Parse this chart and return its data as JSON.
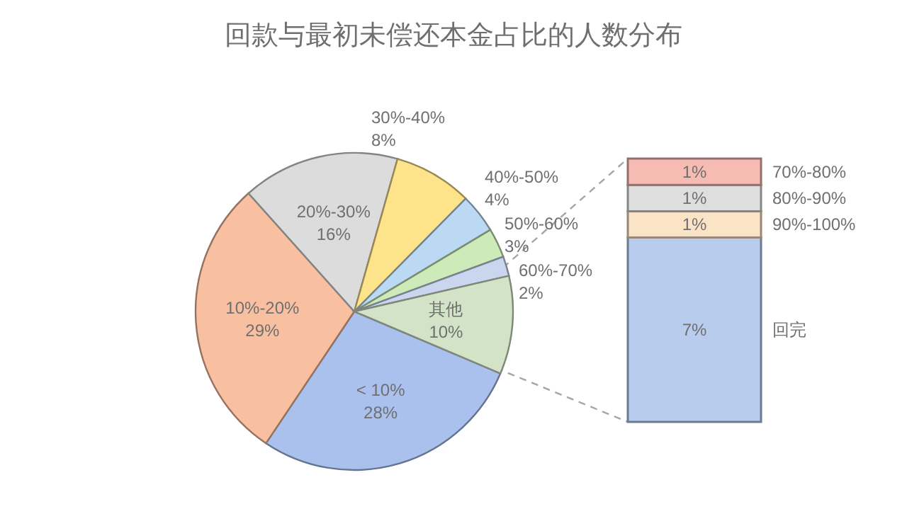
{
  "chart_data": [
    {
      "type": "pie",
      "title": "回款与最初未偿还本金占比的人数分布",
      "categories": [
        "< 10%",
        "10%-20%",
        "20%-30%",
        "30%-40%",
        "40%-50%",
        "50%-60%",
        "60%-70%",
        "其他"
      ],
      "values": [
        28,
        29,
        16,
        8,
        4,
        3,
        2,
        10
      ],
      "value_labels": [
        "28%",
        "29%",
        "16%",
        "8%",
        "4%",
        "3%",
        "2%",
        "10%"
      ],
      "colors": [
        "#a9c1ec",
        "#f8bfa0",
        "#dcdcdc",
        "#fde38a",
        "#bcd9f3",
        "#cdebb8",
        "#c9d6ee",
        "#d3e3c8"
      ]
    },
    {
      "type": "bar",
      "stacked": true,
      "categories": [
        null
      ],
      "series": [
        {
          "name": "回完",
          "color": "#b8ccee",
          "values": [
            7
          ],
          "value_labels": [
            "7%"
          ]
        },
        {
          "name": "90%-100%",
          "color": "#fbe3c6",
          "values": [
            1
          ],
          "value_labels": [
            "1%"
          ]
        },
        {
          "name": "80%-90%",
          "color": "#dedede",
          "values": [
            1
          ],
          "value_labels": [
            "1%"
          ]
        },
        {
          "name": "70%-80%",
          "color": "#f6bcb4",
          "values": [
            1
          ],
          "value_labels": [
            "1%"
          ]
        }
      ]
    }
  ]
}
